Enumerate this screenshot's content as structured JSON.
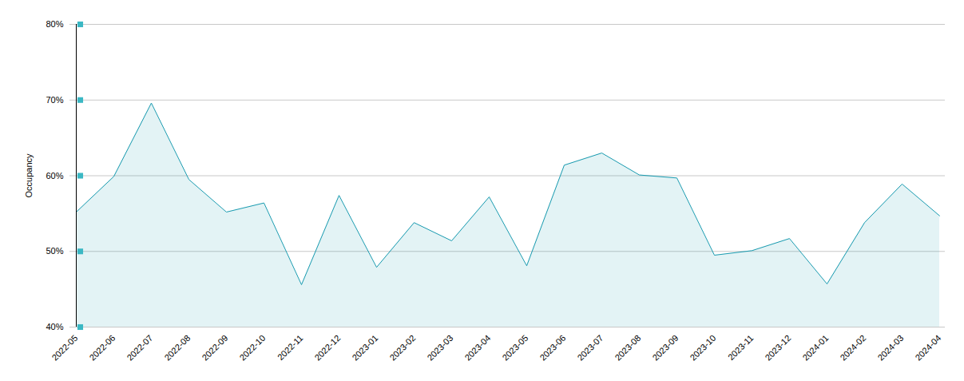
{
  "chart_data": {
    "type": "area",
    "y_label": "Occupancy",
    "categories": [
      "2022-05",
      "2022-06",
      "2022-07",
      "2022-08",
      "2022-09",
      "2022-10",
      "2022-11",
      "2022-12",
      "2023-01",
      "2023-02",
      "2023-03",
      "2023-04",
      "2023-05",
      "2023-06",
      "2023-07",
      "2023-08",
      "2023-09",
      "2023-10",
      "2023-11",
      "2023-12",
      "2024-01",
      "2024-02",
      "2024-03",
      "2024-04"
    ],
    "values": [
      55.2,
      59.9,
      69.6,
      59.5,
      55.2,
      56.4,
      45.6,
      57.4,
      47.9,
      53.8,
      51.4,
      57.2,
      48.1,
      61.4,
      63.0,
      60.1,
      59.7,
      49.5,
      50.1,
      51.7,
      45.7,
      53.8,
      58.9,
      54.7
    ],
    "color": "#1a9bb0",
    "ylim": [
      40,
      80
    ],
    "yticks": [
      {
        "value": 40,
        "label": "40%"
      },
      {
        "value": 50,
        "label": "50%"
      },
      {
        "value": 60,
        "label": "60%"
      },
      {
        "value": 70,
        "label": "70%"
      },
      {
        "value": 80,
        "label": "80%"
      }
    ],
    "grid": true
  }
}
